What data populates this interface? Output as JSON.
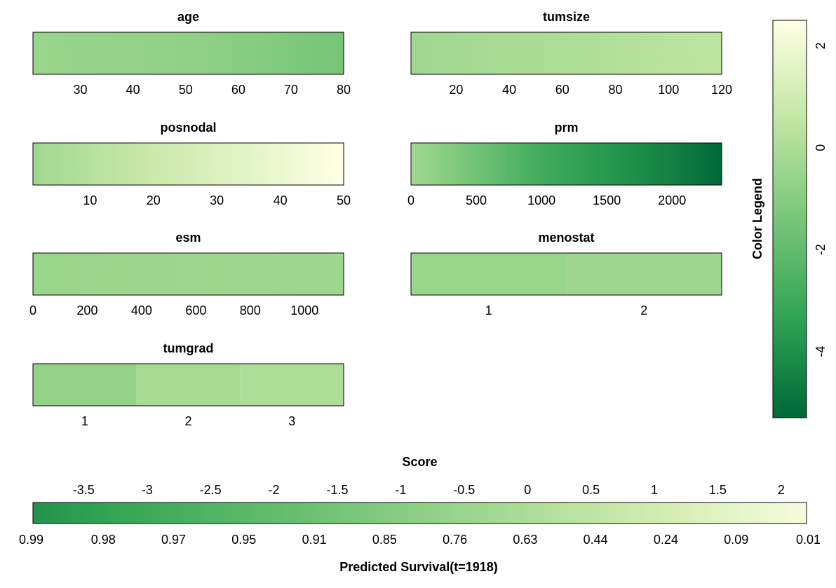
{
  "palette": [
    "#006837",
    "#31a354",
    "#78c679",
    "#c2e6a3",
    "#ffffe5"
  ],
  "chart_data": {
    "type": "heatmap",
    "score_range": [
      -5.3,
      2.5
    ],
    "panels": [
      {
        "title": "age",
        "kind": "continuous",
        "range": [
          21,
          80
        ],
        "ticks": [
          30,
          40,
          50,
          60,
          70,
          80
        ],
        "color_stops": [
          {
            "x": 21,
            "score": -0.55
          },
          {
            "x": 50,
            "score": -0.75
          },
          {
            "x": 80,
            "score": -1.45
          }
        ]
      },
      {
        "title": "tumsize",
        "kind": "continuous",
        "range": [
          3,
          120
        ],
        "ticks": [
          20,
          40,
          60,
          80,
          100,
          120
        ],
        "color_stops": [
          {
            "x": 3,
            "score": -0.35
          },
          {
            "x": 60,
            "score": 0.0
          },
          {
            "x": 120,
            "score": 0.45
          }
        ]
      },
      {
        "title": "posnodal",
        "kind": "continuous",
        "range": [
          1,
          50
        ],
        "ticks": [
          10,
          20,
          30,
          40,
          50
        ],
        "color_stops": [
          {
            "x": 1,
            "score": -0.3
          },
          {
            "x": 20,
            "score": 0.8
          },
          {
            "x": 35,
            "score": 1.6
          },
          {
            "x": 50,
            "score": 2.5
          }
        ]
      },
      {
        "title": "prm",
        "kind": "continuous",
        "range": [
          0,
          2380
        ],
        "ticks": [
          0,
          500,
          1000,
          1500,
          2000
        ],
        "color_stops": [
          {
            "x": 0,
            "score": -0.3
          },
          {
            "x": 500,
            "score": -1.6
          },
          {
            "x": 1000,
            "score": -2.9
          },
          {
            "x": 1500,
            "score": -3.7
          },
          {
            "x": 2000,
            "score": -4.5
          },
          {
            "x": 2380,
            "score": -5.3
          }
        ]
      },
      {
        "title": "esm",
        "kind": "continuous",
        "range": [
          0,
          1144
        ],
        "ticks": [
          0,
          200,
          400,
          600,
          800,
          1000
        ],
        "color_stops": [
          {
            "x": 0,
            "score": -0.5
          },
          {
            "x": 1144,
            "score": -0.35
          }
        ]
      },
      {
        "title": "menostat",
        "kind": "categorical",
        "categories": [
          "1",
          "2"
        ],
        "scores": [
          -0.5,
          -0.35
        ]
      },
      {
        "title": "tumgrad",
        "kind": "categorical",
        "categories": [
          "1",
          "2",
          "3"
        ],
        "scores": [
          -0.65,
          -0.15,
          0.05
        ]
      }
    ],
    "legend": {
      "title": "Color Legend",
      "orientation": "vertical",
      "range": [
        -5.3,
        2.5
      ],
      "ticks": [
        2,
        0,
        -2,
        -4
      ]
    },
    "score_bar": {
      "title": "Score",
      "range": [
        -3.9,
        2.2
      ],
      "score_ticks": [
        "-3.5",
        "-3",
        "-2.5",
        "-2",
        "-1.5",
        "-1",
        "-0.5",
        "0",
        "0.5",
        "1",
        "1.5",
        "2"
      ],
      "survival_ticks": [
        "0.99",
        "0.98",
        "0.97",
        "0.95",
        "0.91",
        "0.85",
        "0.76",
        "0.63",
        "0.44",
        "0.24",
        "0.09",
        "0.01"
      ],
      "xlabel": "Predicted Survival(t=1918)"
    }
  }
}
